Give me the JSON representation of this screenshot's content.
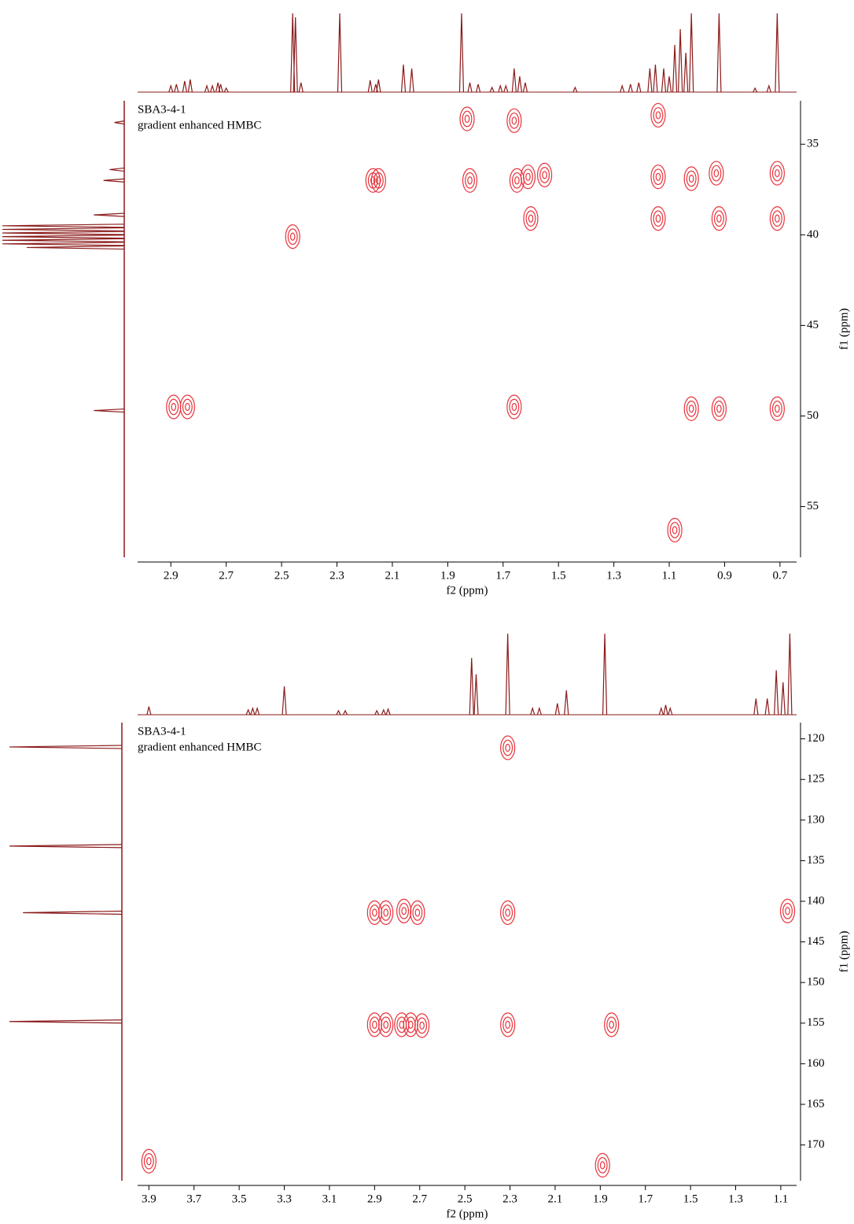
{
  "chart_data": [
    {
      "type": "contour",
      "sample": "SBA3-4-1",
      "experiment": "gradient enhanced HMBC",
      "xlabel": "f2 (ppm)",
      "ylabel": "f1 (ppm)",
      "xlim": [
        3.02,
        0.64
      ],
      "ylim": [
        32.6,
        57.8
      ],
      "xticks": [
        2.9,
        2.7,
        2.5,
        2.3,
        2.1,
        1.9,
        1.7,
        1.5,
        1.3,
        1.1,
        0.9,
        0.7
      ],
      "yticks": [
        35,
        40,
        45,
        50,
        55
      ],
      "line_color": "#8b1a1a",
      "contour_color": "#e8343c",
      "top_projection": {
        "x": [
          2.9,
          2.88,
          2.85,
          2.83,
          2.77,
          2.75,
          2.73,
          2.72,
          2.7,
          2.46,
          2.45,
          2.43,
          2.29,
          2.18,
          2.16,
          2.15,
          2.06,
          2.03,
          1.85,
          1.82,
          1.79,
          1.74,
          1.71,
          1.69,
          1.66,
          1.64,
          1.62,
          1.44,
          1.27,
          1.24,
          1.21,
          1.17,
          1.15,
          1.12,
          1.1,
          1.08,
          1.06,
          1.04,
          1.02,
          0.92,
          0.79,
          0.74,
          0.71
        ],
        "values": [
          8,
          10,
          14,
          16,
          8,
          8,
          12,
          10,
          5,
          100,
          95,
          12,
          100,
          15,
          10,
          16,
          35,
          30,
          100,
          12,
          10,
          6,
          8,
          8,
          30,
          20,
          12,
          6,
          8,
          10,
          12,
          30,
          35,
          30,
          20,
          60,
          80,
          50,
          100,
          100,
          5,
          8,
          100
        ]
      },
      "left_projection": {
        "y": [
          33.8,
          36.4,
          37.0,
          38.9,
          39.5,
          39.7,
          39.9,
          40.1,
          40.3,
          40.5,
          40.7,
          49.7
        ],
        "values": [
          8,
          12,
          17,
          25,
          100,
          100,
          100,
          100,
          100,
          100,
          80,
          25
        ]
      },
      "peaks": {
        "x": [
          1.83,
          1.66,
          1.14,
          1.02,
          2.17,
          2.15,
          1.82,
          1.65,
          1.61,
          1.55,
          1.14,
          0.93,
          0.71,
          1.6,
          1.14,
          0.92,
          0.71,
          2.46,
          1.02,
          0.92,
          0.71,
          1.66,
          2.89,
          2.84,
          1.08
        ],
        "y": [
          33.6,
          33.7,
          33.4,
          36.9,
          37.0,
          37.0,
          37.0,
          37.0,
          36.8,
          36.7,
          36.8,
          36.6,
          36.6,
          39.1,
          39.1,
          39.1,
          39.1,
          40.1,
          49.6,
          49.6,
          49.6,
          49.5,
          49.5,
          49.5,
          56.3
        ]
      }
    },
    {
      "type": "contour",
      "sample": "SBA3-4-1",
      "experiment": "gradient enhanced HMBC",
      "xlabel": "f2 (ppm)",
      "ylabel": "f1 (ppm)",
      "xlim": [
        3.95,
        1.03
      ],
      "ylim": [
        118.0,
        174.4
      ],
      "xticks": [
        3.9,
        3.7,
        3.5,
        3.3,
        3.1,
        2.9,
        2.7,
        2.5,
        2.3,
        2.1,
        1.9,
        1.7,
        1.5,
        1.3,
        1.1
      ],
      "yticks": [
        120,
        125,
        130,
        135,
        140,
        145,
        150,
        155,
        160,
        165,
        170
      ],
      "line_color": "#8b1a1a",
      "contour_color": "#e8343c",
      "top_projection": {
        "x": [
          3.9,
          3.46,
          3.44,
          3.42,
          3.3,
          3.06,
          3.03,
          2.89,
          2.86,
          2.84,
          2.47,
          2.45,
          2.31,
          2.2,
          2.17,
          2.09,
          2.05,
          1.88,
          1.63,
          1.61,
          1.59,
          1.21,
          1.16,
          1.12,
          1.09,
          1.06
        ],
        "values": [
          10,
          6,
          8,
          8,
          35,
          5,
          5,
          5,
          6,
          7,
          70,
          50,
          100,
          8,
          8,
          14,
          30,
          100,
          8,
          12,
          8,
          20,
          20,
          55,
          40,
          100
        ]
      },
      "left_projection": {
        "y": [
          121.0,
          133.2,
          141.4,
          154.8
        ],
        "values": [
          100,
          100,
          88,
          100
        ]
      },
      "peaks": {
        "x": [
          2.31,
          2.9,
          2.85,
          2.77,
          2.71,
          2.31,
          1.07,
          2.9,
          2.85,
          2.78,
          2.74,
          2.69,
          2.31,
          1.85,
          3.9,
          1.89
        ],
        "y": [
          121.1,
          141.4,
          141.4,
          141.2,
          141.4,
          141.4,
          141.2,
          155.2,
          155.2,
          155.2,
          155.2,
          155.3,
          155.2,
          155.2,
          172.0,
          172.5
        ]
      }
    }
  ]
}
